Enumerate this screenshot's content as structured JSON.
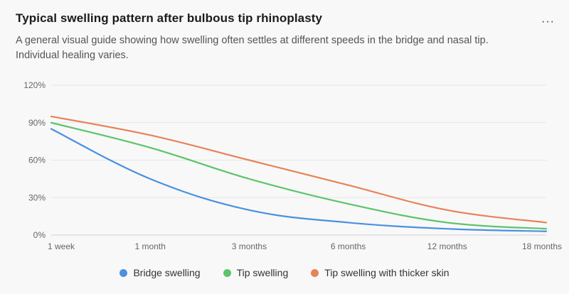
{
  "header": {
    "title": "Typical swelling pattern after bulbous tip rhinoplasty",
    "subtitle": "A general visual guide showing how swelling often settles at different speeds in the bridge and nasal tip. Individual healing varies.",
    "more_icon": "more-horizontal-icon",
    "more_label": "···"
  },
  "chart_data": {
    "type": "line",
    "title": "Typical swelling pattern after bulbous tip rhinoplasty",
    "xlabel": "",
    "ylabel": "",
    "categories": [
      "1 week",
      "1 month",
      "3 months",
      "6 months",
      "12 months",
      "18 months"
    ],
    "y_ticks": [
      "0%",
      "30%",
      "60%",
      "90%",
      "120%"
    ],
    "ylim": [
      0,
      120
    ],
    "grid": "horizontal",
    "legend": "bottom",
    "series": [
      {
        "name": "Bridge swelling",
        "color": "#4a90e2",
        "values": [
          85,
          45,
          20,
          10,
          5,
          3
        ]
      },
      {
        "name": "Tip swelling",
        "color": "#5cc46a",
        "values": [
          90,
          70,
          45,
          25,
          10,
          5
        ]
      },
      {
        "name": "Tip swelling with thicker skin",
        "color": "#e8825a",
        "values": [
          95,
          80,
          60,
          40,
          20,
          10
        ]
      }
    ]
  }
}
